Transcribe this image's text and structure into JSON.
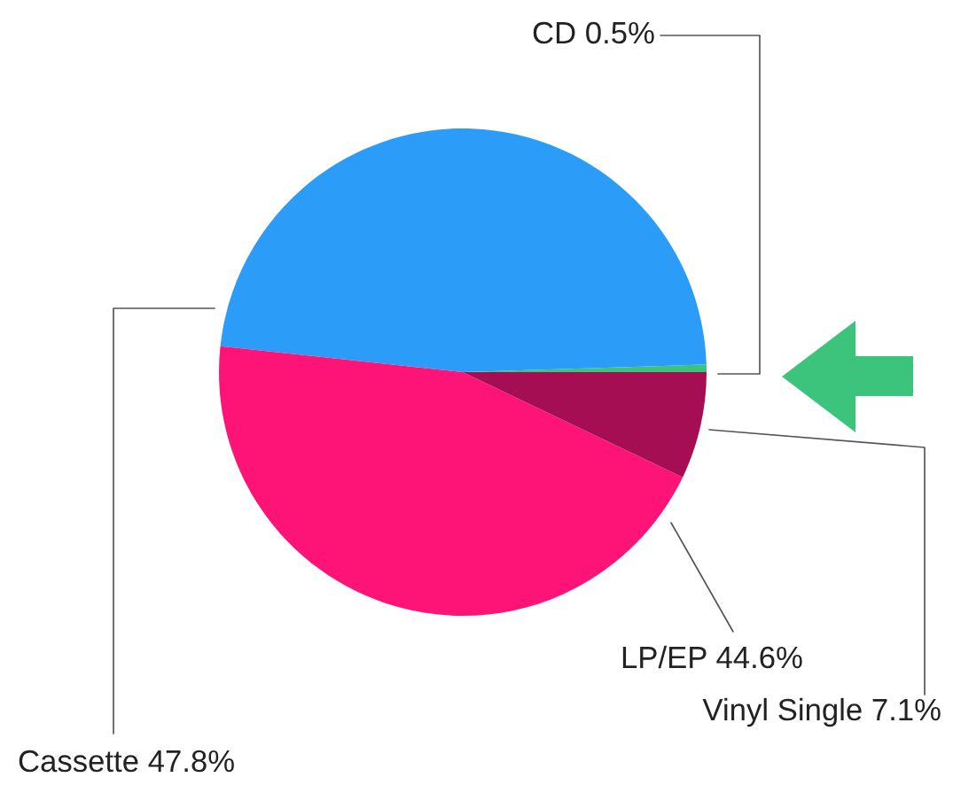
{
  "chart_data": {
    "type": "pie",
    "categories": [
      "CD",
      "Cassette",
      "LP/EP",
      "Vinyl Single"
    ],
    "values": [
      0.5,
      47.8,
      44.6,
      7.1
    ],
    "colors": [
      "#3cc47c",
      "#2b9cf7",
      "#fe1477",
      "#a50e52"
    ],
    "value_labels": [
      "0.5%",
      "47.8%",
      "44.6%",
      "7.1%"
    ]
  }
}
